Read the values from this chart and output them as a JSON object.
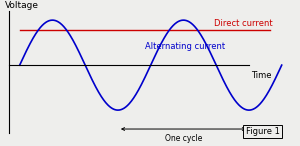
{
  "bg_color": "#eeeeec",
  "sine_color": "#0000cc",
  "dc_color": "#cc0000",
  "axis_color": "#000000",
  "dc_level": 0.78,
  "sine_amplitude": 1.0,
  "ylabel": "Voltage",
  "xlabel": "Time",
  "dc_label": "Direct current",
  "ac_label": "Alternating current",
  "cycle_label": "One cycle",
  "figure_label": "Figure 1",
  "ylabel_fontsize": 6.5,
  "xlabel_fontsize": 6.0,
  "dc_label_fontsize": 6.0,
  "ac_label_fontsize": 6.0,
  "cycle_fontsize": 5.5,
  "figure_fontsize": 6.0,
  "xlim_left": -0.3,
  "xlim_right": 13.8,
  "ylim_bottom": -1.7,
  "ylim_top": 1.35
}
